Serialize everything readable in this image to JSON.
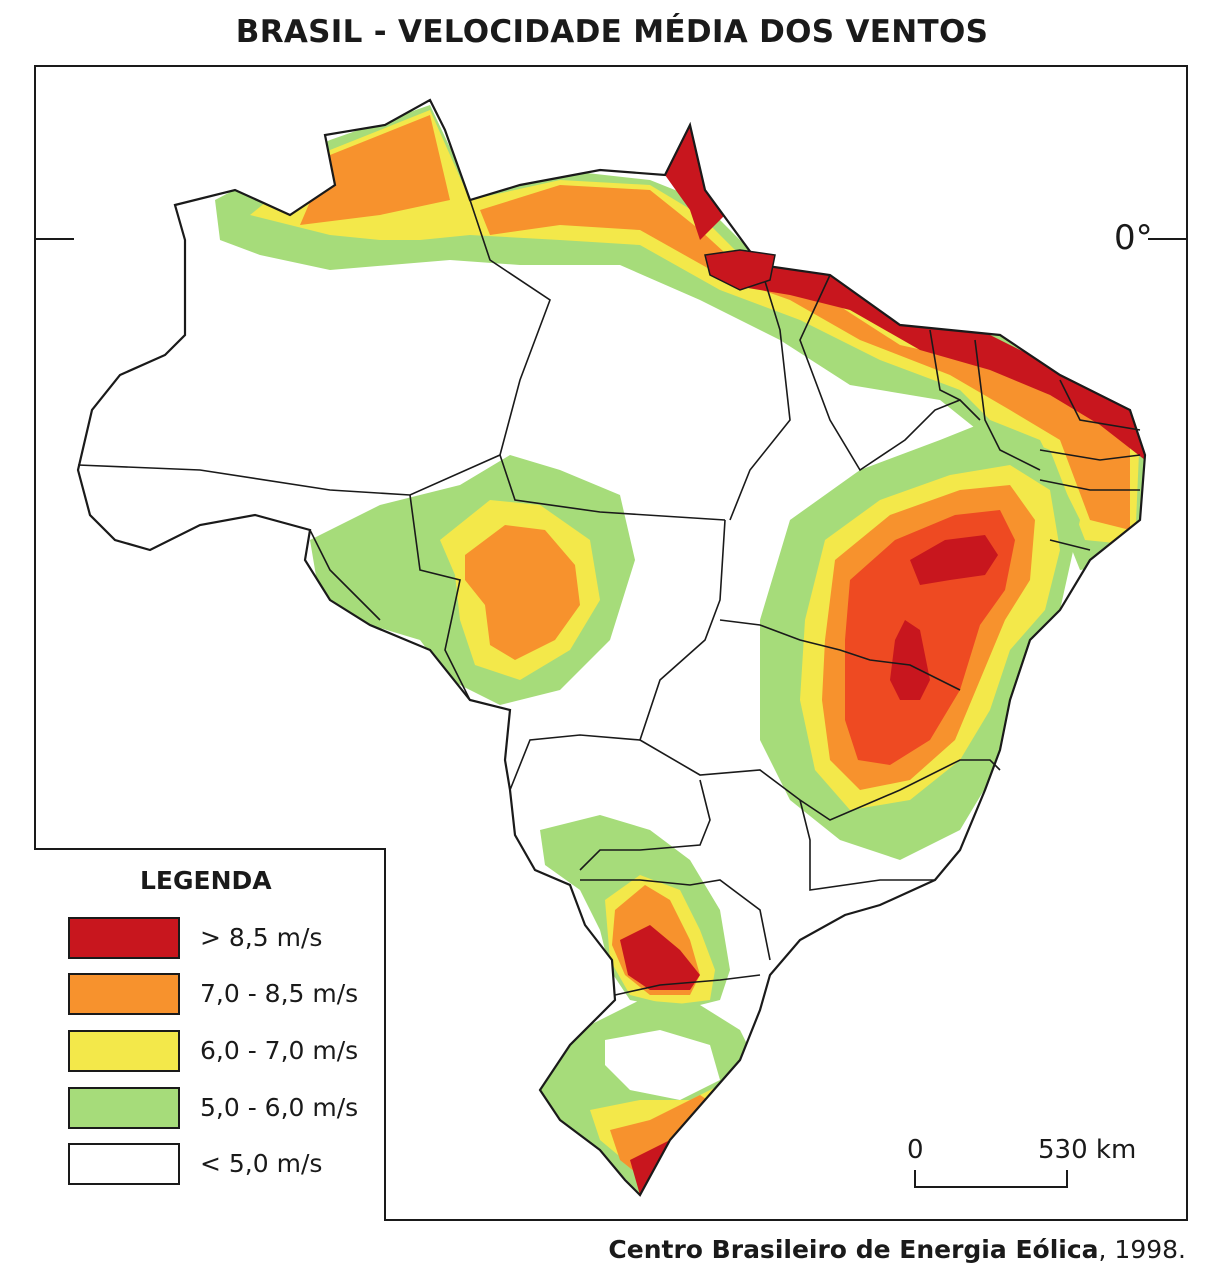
{
  "title": "BRASIL - VELOCIDADE MÉDIA DOS VENTOS",
  "equator_label": "0°",
  "legend": {
    "title": "LEGENDA",
    "items": [
      {
        "label": "> 8,5 m/s",
        "color": "#c8161e"
      },
      {
        "label": "7,0 - 8,5 m/s",
        "color": "#f7922d"
      },
      {
        "label": "6,0 - 7,0 m/s",
        "color": "#f3e84a"
      },
      {
        "label": "5,0 - 6,0 m/s",
        "color": "#a6dc7a"
      },
      {
        "label": "< 5,0 m/s",
        "color": "#ffffff"
      }
    ]
  },
  "scale_bar": {
    "start": "0",
    "end": "530 km"
  },
  "source": {
    "org": "Centro Brasileiro de Energia Eólica",
    "year": ", 1998."
  },
  "colors": {
    "red_orange": "#ee4a22",
    "border": "#1a1a1a"
  }
}
